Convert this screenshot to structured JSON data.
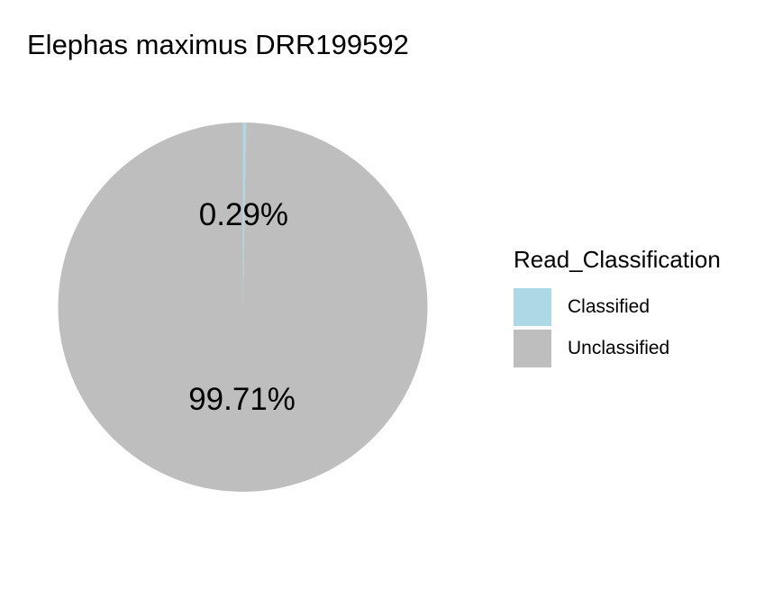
{
  "chart_data": {
    "type": "pie",
    "title": "Elephas maximus DRR199592",
    "legend_title": "Read_Classification",
    "legend_position": "right",
    "slices": [
      {
        "label": "Classified",
        "value": 0.29,
        "display": "0.29%",
        "color": "#add8e6"
      },
      {
        "label": "Unclassified",
        "value": 99.71,
        "display": "99.71%",
        "color": "#bebebe"
      }
    ]
  }
}
